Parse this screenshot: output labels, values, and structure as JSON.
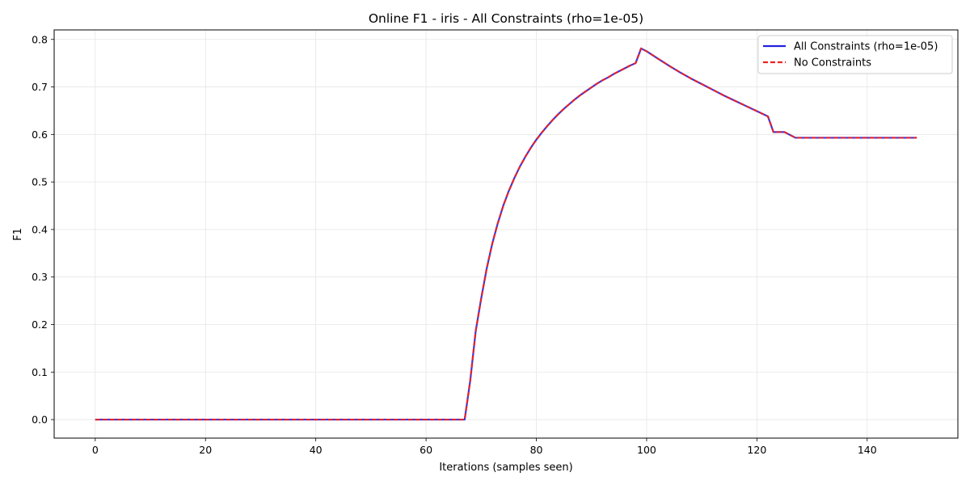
{
  "chart_data": {
    "type": "line",
    "title": "Online F1 - iris - All Constraints (rho=1e-05)",
    "xlabel": "Iterations (samples seen)",
    "ylabel": "F1",
    "xlim": [
      -7.45,
      156.45
    ],
    "ylim": [
      -0.039,
      0.82
    ],
    "xticks": [
      0,
      20,
      40,
      60,
      80,
      100,
      120,
      140
    ],
    "yticks": [
      0.0,
      0.1,
      0.2,
      0.3,
      0.4,
      0.5,
      0.6,
      0.7,
      0.8
    ],
    "xtick_labels": [
      "0",
      "20",
      "40",
      "60",
      "80",
      "100",
      "120",
      "140"
    ],
    "ytick_labels": [
      "0.0",
      "0.1",
      "0.2",
      "0.3",
      "0.4",
      "0.5",
      "0.6",
      "0.7",
      "0.8"
    ],
    "grid": true,
    "legend_position": "top-right",
    "series": [
      {
        "name": "All Constraints (rho=1e-05)",
        "color": "#2222dd",
        "style": "solid",
        "x": [
          0,
          10,
          20,
          30,
          40,
          50,
          60,
          67,
          68,
          69,
          70,
          71,
          72,
          73,
          74,
          75,
          76,
          77,
          78,
          79,
          80,
          81,
          82,
          83,
          84,
          85,
          86,
          87,
          88,
          89,
          90,
          91,
          92,
          93,
          94,
          95,
          96,
          97,
          98,
          99,
          100,
          102,
          104,
          106,
          108,
          110,
          112,
          114,
          116,
          118,
          120,
          122,
          123,
          125,
          127,
          130,
          135,
          140,
          145,
          149
        ],
        "y": [
          0,
          0,
          0,
          0,
          0,
          0,
          0,
          0,
          0.081,
          0.186,
          0.255,
          0.318,
          0.37,
          0.413,
          0.45,
          0.481,
          0.508,
          0.532,
          0.553,
          0.572,
          0.589,
          0.604,
          0.618,
          0.631,
          0.643,
          0.654,
          0.664,
          0.674,
          0.683,
          0.691,
          0.699,
          0.707,
          0.714,
          0.72,
          0.727,
          0.733,
          0.739,
          0.745,
          0.75,
          0.781,
          0.775,
          0.76,
          0.745,
          0.731,
          0.718,
          0.706,
          0.694,
          0.682,
          0.671,
          0.66,
          0.649,
          0.638,
          0.605,
          0.605,
          0.593,
          0.593,
          0.593,
          0.593,
          0.593,
          0.593
        ]
      },
      {
        "name": "No Constraints",
        "color": "#ee2222",
        "style": "dashed",
        "x": [
          0,
          10,
          20,
          30,
          40,
          50,
          60,
          67,
          68,
          69,
          70,
          71,
          72,
          73,
          74,
          75,
          76,
          77,
          78,
          79,
          80,
          81,
          82,
          83,
          84,
          85,
          86,
          87,
          88,
          89,
          90,
          91,
          92,
          93,
          94,
          95,
          96,
          97,
          98,
          99,
          100,
          102,
          104,
          106,
          108,
          110,
          112,
          114,
          116,
          118,
          120,
          122,
          123,
          125,
          127,
          130,
          135,
          140,
          145,
          149
        ],
        "y": [
          0,
          0,
          0,
          0,
          0,
          0,
          0,
          0,
          0.081,
          0.186,
          0.255,
          0.318,
          0.37,
          0.413,
          0.45,
          0.481,
          0.508,
          0.532,
          0.553,
          0.572,
          0.589,
          0.604,
          0.618,
          0.631,
          0.643,
          0.654,
          0.664,
          0.674,
          0.683,
          0.691,
          0.699,
          0.707,
          0.714,
          0.72,
          0.727,
          0.733,
          0.739,
          0.745,
          0.75,
          0.781,
          0.775,
          0.76,
          0.745,
          0.731,
          0.718,
          0.706,
          0.694,
          0.682,
          0.671,
          0.66,
          0.649,
          0.638,
          0.605,
          0.605,
          0.593,
          0.593,
          0.593,
          0.593,
          0.593,
          0.593
        ]
      }
    ]
  }
}
